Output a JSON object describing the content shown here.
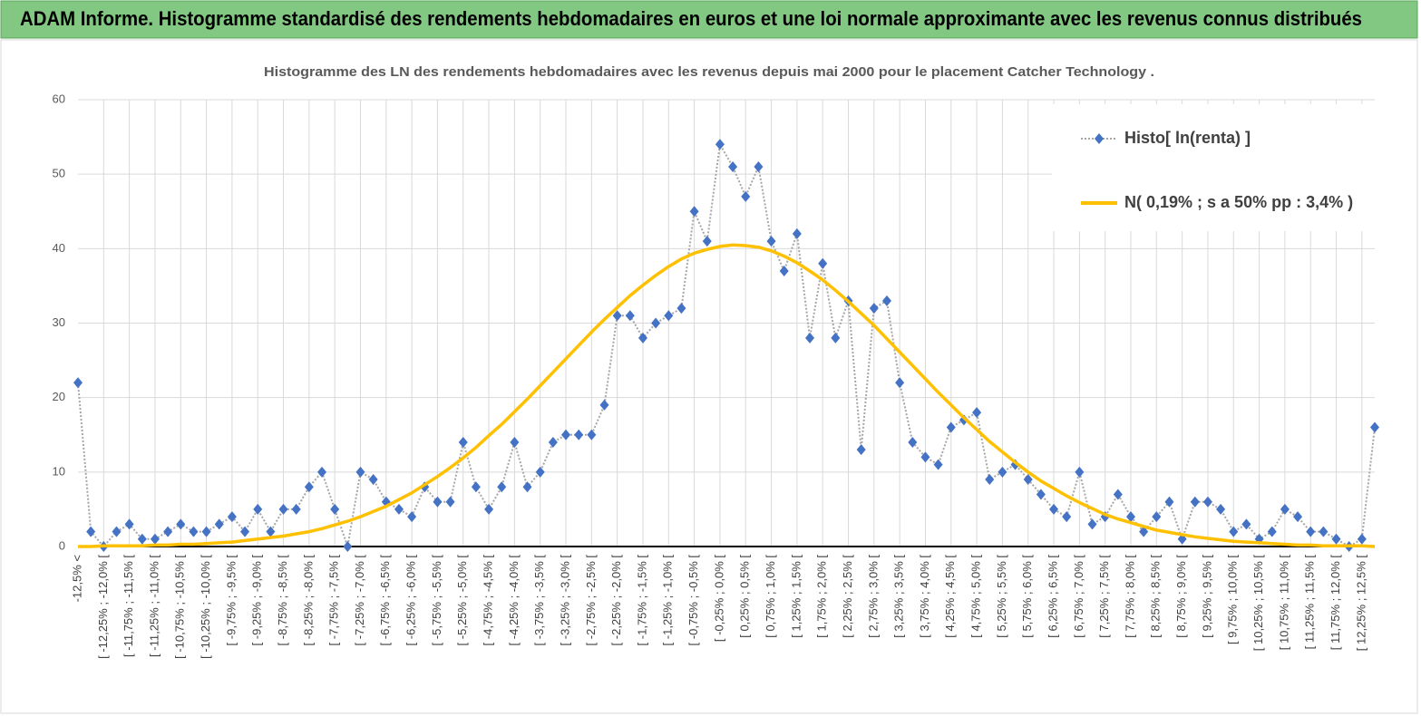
{
  "chart_data": {
    "type": "line",
    "title": "ADAM Informe. Histogramme standardisé des rendements hebdomadaires en euros et une loi normale approximante avec les revenus connus distribués",
    "subtitle": "Histogramme des LN des rendements hebdomadaires avec les revenus depuis mai 2000 pour le placement Catcher Technology .",
    "categories": [
      "-12,5% <",
      null,
      "[ -12,25% ; -12,0% [",
      null,
      "[ -11,75% ; -11,5% [",
      null,
      "[ -11,25% ; -11,0% [",
      null,
      "[ -10,75% ; -10,5% [",
      null,
      "[ -10,25% ; -10,0% [",
      null,
      "[ -9,75% ; -9,5% [",
      null,
      "[ -9,25% ; -9,0% [",
      null,
      "[ -8,75% ; -8,5% [",
      null,
      "[ -8,25% ; -8,0% [",
      null,
      "[ -7,75% ; -7,5% [",
      null,
      "[ -7,25% ; -7,0% [",
      null,
      "[ -6,75% ; -6,5% [",
      null,
      "[ -6,25% ; -6,0% [",
      null,
      "[ -5,75% ; -5,5% [",
      null,
      "[ -5,25% ; -5,0% [",
      null,
      "[ -4,75% ; -4,5% [",
      null,
      "[ -4,25% ; -4,0% [",
      null,
      "[ -3,75% ; -3,5% [",
      null,
      "[ -3,25% ; -3,0% [",
      null,
      "[ -2,75% ; -2,5% [",
      null,
      "[ -2,25% ; -2,0% [",
      null,
      "[ -1,75% ; -1,5% [",
      null,
      "[ -1,25% ; -1,0% [",
      null,
      "[ -0,75% ; -0,5% [",
      null,
      "[ -0,25% ; 0,0% [",
      null,
      "[ 0,25% ; 0,5% [",
      null,
      "[ 0,75% ; 1,0% [",
      null,
      "[ 1,25% ; 1,5% [",
      null,
      "[ 1,75% ; 2,0% [",
      null,
      "[ 2,25% ; 2,5% [",
      null,
      "[ 2,75% ; 3,0% [",
      null,
      "[ 3,25% ; 3,5% [",
      null,
      "[ 3,75% ; 4,0% [",
      null,
      "[ 4,25% ; 4,5% [",
      null,
      "[ 4,75% ; 5,0% [",
      null,
      "[ 5,25% ; 5,5% [",
      null,
      "[ 5,75% ; 6,0% [",
      null,
      "[ 6,25% ; 6,5% [",
      null,
      "[ 6,75% ; 7,0% [",
      null,
      "[ 7,25% ; 7,5% [",
      null,
      "[ 7,75% ; 8,0% [",
      null,
      "[ 8,25% ; 8,5% [",
      null,
      "[ 8,75% ; 9,0% [",
      null,
      "[ 9,25% ; 9,5% [",
      null,
      "[ 9,75% ; 10,0% [",
      null,
      "[ 10,25% ; 10,5% [",
      null,
      "[ 10,75% ; 11,0% [",
      null,
      "[ 11,25% ; 11,5% [",
      null,
      "[ 11,75% ; 12,0% [",
      null,
      "[ 12,25% ; 12,5% [",
      null
    ],
    "series": [
      {
        "name": "Histo[ ln(renta) ]",
        "color": "#4472c4",
        "line_color": "#a6a6a6",
        "values": [
          22,
          2,
          0,
          2,
          3,
          1,
          1,
          2,
          3,
          2,
          2,
          3,
          4,
          2,
          5,
          2,
          5,
          5,
          8,
          10,
          5,
          0,
          10,
          9,
          6,
          5,
          4,
          8,
          6,
          6,
          14,
          8,
          5,
          8,
          14,
          8,
          10,
          14,
          15,
          15,
          15,
          19,
          31,
          31,
          28,
          30,
          31,
          32,
          45,
          41,
          54,
          51,
          47,
          51,
          41,
          37,
          42,
          28,
          38,
          28,
          33,
          13,
          32,
          33,
          22,
          14,
          12,
          11,
          16,
          17,
          18,
          9,
          10,
          11,
          9,
          7,
          5,
          4,
          10,
          3,
          4,
          7,
          4,
          2,
          4,
          6,
          1,
          6,
          6,
          5,
          2,
          3,
          1,
          2,
          5,
          4,
          2,
          2,
          1,
          0,
          1,
          16
        ]
      },
      {
        "name": "N( 0,19% ; s a 50% pp : 3,4% )",
        "color": "#ffc000",
        "values": [
          0,
          0.0,
          0.1,
          0.1,
          0.1,
          0.1,
          0.2,
          0.2,
          0.3,
          0.3,
          0.4,
          0.5,
          0.6,
          0.8,
          1.0,
          1.2,
          1.4,
          1.7,
          2.0,
          2.4,
          2.9,
          3.4,
          4.0,
          4.7,
          5.4,
          6.3,
          7.2,
          8.3,
          9.4,
          10.6,
          11.9,
          13.3,
          14.9,
          16.4,
          18.1,
          19.8,
          21.6,
          23.4,
          25.2,
          27.0,
          28.8,
          30.5,
          32.1,
          33.7,
          35.1,
          36.4,
          37.6,
          38.6,
          39.4,
          39.9,
          40.3,
          40.5,
          40.4,
          40.2,
          39.7,
          39.0,
          38.1,
          37.0,
          35.8,
          34.4,
          32.9,
          31.3,
          29.7,
          27.9,
          26.1,
          24.3,
          22.5,
          20.7,
          19.0,
          17.3,
          15.7,
          14.1,
          12.7,
          11.3,
          10.0,
          8.8,
          7.8,
          6.8,
          5.9,
          5.1,
          4.3,
          3.7,
          3.2,
          2.7,
          2.2,
          1.9,
          1.6,
          1.3,
          1.1,
          0.9,
          0.7,
          0.6,
          0.5,
          0.4,
          0.3,
          0.2,
          0.2,
          0.1,
          0.1,
          0.1,
          0.1,
          0
        ]
      }
    ],
    "ylim": [
      0,
      60
    ],
    "yticks": [
      0,
      10,
      20,
      30,
      40,
      50,
      60
    ],
    "grid": true,
    "legend": "upper right"
  }
}
